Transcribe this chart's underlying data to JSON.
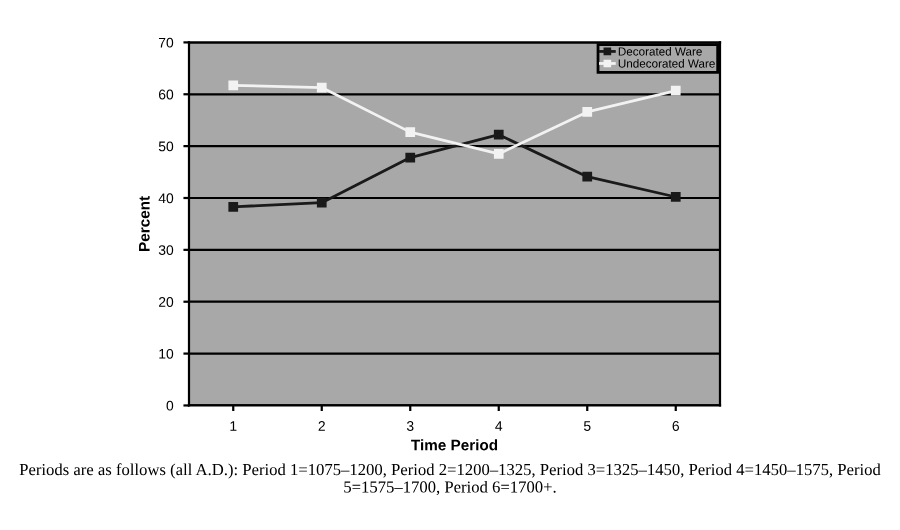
{
  "chart_data": {
    "type": "line",
    "xlabel": "Time Period",
    "ylabel": "Percent",
    "categories": [
      "1",
      "2",
      "3",
      "4",
      "5",
      "6"
    ],
    "series": [
      {
        "name": "Decorated Ware",
        "color": "#1a1a1a",
        "values": [
          38.3,
          39.1,
          47.8,
          52.2,
          44.1,
          40.2
        ]
      },
      {
        "name": "Undecorated Ware",
        "color": "#f2f2f2",
        "values": [
          61.7,
          61.3,
          52.7,
          48.5,
          56.6,
          60.7
        ]
      }
    ],
    "ylim": [
      0,
      70
    ],
    "yticks": [
      0,
      10,
      20,
      30,
      40,
      50,
      60,
      70
    ],
    "grid": "y",
    "legend": "top right",
    "marker": "square",
    "line_style": "solid",
    "annotations": [
      "Periods are as follows (all A.D.): Period 1=1075–1200, Period 2=1200–1325, Period 3=1325–1450, Period 4=1450–1575, Period 5=1575–1700, Period 6=1700+."
    ]
  }
}
